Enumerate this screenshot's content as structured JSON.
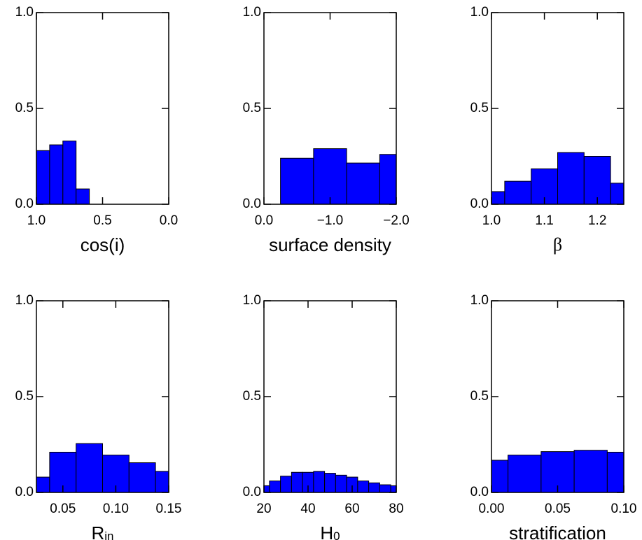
{
  "chart_data": [
    {
      "type": "histogram",
      "xlabel": "cos(i)",
      "color": "#0000ff",
      "bins": [
        1.0,
        0.9,
        0.8,
        0.7,
        0.6
      ],
      "values": [
        0.28,
        0.31,
        0.33,
        0.08
      ],
      "xlim": [
        1.0,
        0.0
      ],
      "xticks": [
        {
          "value": 1.0,
          "label": "1.0"
        },
        0.5,
        {
          "value": 0.0,
          "label": "0.0"
        }
      ],
      "ylim": [
        0,
        1
      ],
      "yticks": [
        {
          "value": 0,
          "label": "0.0"
        },
        0.5,
        {
          "value": 1,
          "label": "1.0"
        }
      ]
    },
    {
      "type": "histogram",
      "xlabel": "surface density",
      "color": "#0000ff",
      "bins": [
        -0.25,
        -0.75,
        -1.25,
        -1.75,
        -2.0
      ],
      "values": [
        0.24,
        0.29,
        0.215,
        0.26
      ],
      "xlim": [
        0.0,
        -2.0
      ],
      "xticks": [
        {
          "value": 0.0,
          "label": "0.0"
        },
        {
          "value": -1.0,
          "label": "−1.0"
        },
        {
          "value": -2.0,
          "label": "−2.0"
        }
      ],
      "ylim": [
        0,
        1
      ],
      "yticks": [
        {
          "value": 0,
          "label": "0.0"
        },
        0.5,
        {
          "value": 1,
          "label": "1.0"
        }
      ]
    },
    {
      "type": "histogram",
      "xlabel": "β",
      "color": "#0000ff",
      "bins": [
        1.0,
        1.025,
        1.075,
        1.125,
        1.175,
        1.225,
        1.25
      ],
      "values": [
        0.066,
        0.12,
        0.185,
        0.27,
        0.25,
        0.11
      ],
      "xlim": [
        1.0,
        1.25
      ],
      "xticks": [
        {
          "value": 1.0,
          "label": "1.0"
        },
        1.1,
        1.2
      ],
      "ylim": [
        0,
        1
      ],
      "yticks": [
        {
          "value": 0,
          "label": "0.0"
        },
        0.5,
        {
          "value": 1,
          "label": "1.0"
        }
      ]
    },
    {
      "type": "histogram",
      "xlabel": "R",
      "xlabel_sub": "in",
      "color": "#0000ff",
      "bins": [
        0.025,
        0.0375,
        0.0625,
        0.0875,
        0.1125,
        0.1375,
        0.15
      ],
      "values": [
        0.08,
        0.21,
        0.255,
        0.195,
        0.155,
        0.11
      ],
      "xlim": [
        0.025,
        0.15
      ],
      "xticks": [
        0.05,
        {
          "value": 0.1,
          "label": "0.10"
        },
        0.15
      ],
      "ylim": [
        0,
        1
      ],
      "yticks": [
        {
          "value": 0,
          "label": "0.0"
        },
        0.5,
        {
          "value": 1,
          "label": "1.0"
        }
      ]
    },
    {
      "type": "histogram",
      "xlabel": "H",
      "xlabel_sub": "0",
      "color": "#0000ff",
      "bins": [
        20,
        22.5,
        27.5,
        32.5,
        37.5,
        42.5,
        47.5,
        52.5,
        57.5,
        62.5,
        67.5,
        72.5,
        77.5,
        80
      ],
      "values": [
        0.035,
        0.06,
        0.085,
        0.105,
        0.105,
        0.11,
        0.1,
        0.09,
        0.08,
        0.06,
        0.05,
        0.04,
        0.035
      ],
      "xlim": [
        20,
        80
      ],
      "xticks": [
        20,
        40,
        60,
        80
      ],
      "ylim": [
        0,
        1
      ],
      "yticks": [
        {
          "value": 0,
          "label": "0.0"
        },
        0.5,
        {
          "value": 1,
          "label": "1.0"
        }
      ]
    },
    {
      "type": "histogram",
      "xlabel": "stratification",
      "color": "#0000ff",
      "bins": [
        0.0,
        0.0125,
        0.0375,
        0.0625,
        0.0875,
        0.1
      ],
      "values": [
        0.168,
        0.195,
        0.213,
        0.22,
        0.21
      ],
      "xlim": [
        0.0,
        0.1
      ],
      "xticks": [
        {
          "value": 0.0,
          "label": "0.00"
        },
        0.05,
        {
          "value": 0.1,
          "label": "0.10"
        }
      ],
      "ylim": [
        0,
        1
      ],
      "yticks": [
        {
          "value": 0,
          "label": "0.0"
        },
        0.5,
        {
          "value": 1,
          "label": "1.0"
        }
      ]
    }
  ]
}
